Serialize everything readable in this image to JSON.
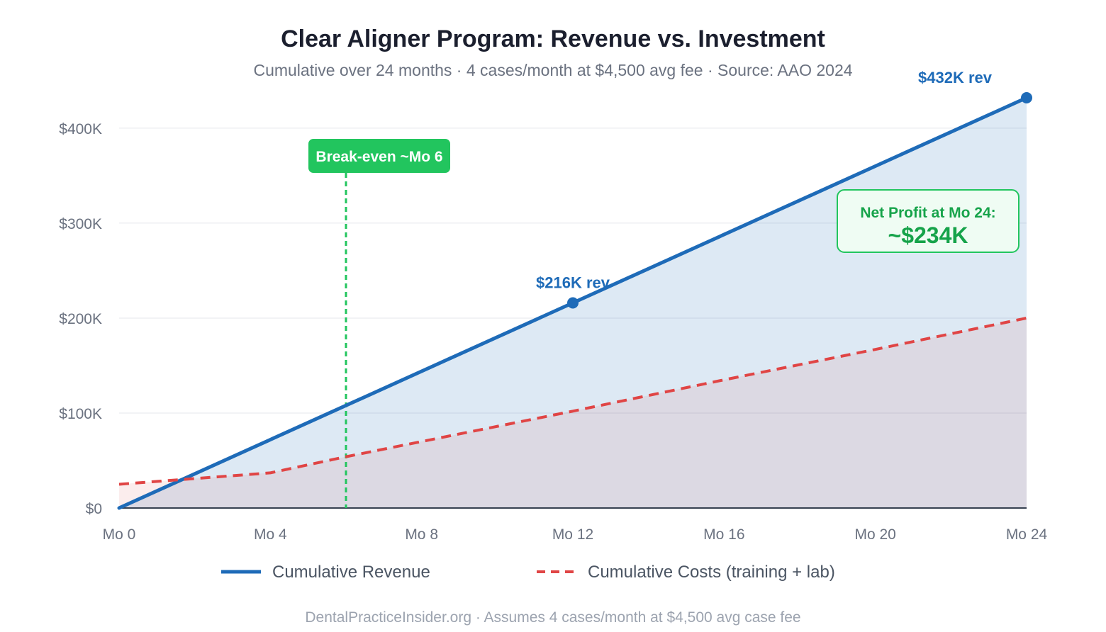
{
  "chart_data": {
    "type": "line",
    "title": "Clear Aligner Program: Revenue vs. Investment",
    "subtitle": "Cumulative over 24 months · 4 cases/month at $4,500 avg fee · Source: AAO 2024",
    "footer": "DentalPracticeInsider.org · Assumes 4 cases/month at $4,500 avg case fee",
    "x_ticks": [
      {
        "value": 0,
        "label": "Mo 0"
      },
      {
        "value": 4,
        "label": "Mo 4"
      },
      {
        "value": 8,
        "label": "Mo 8"
      },
      {
        "value": 12,
        "label": "Mo 12"
      },
      {
        "value": 16,
        "label": "Mo 16"
      },
      {
        "value": 20,
        "label": "Mo 20"
      },
      {
        "value": 24,
        "label": "Mo 24"
      }
    ],
    "y_ticks": [
      {
        "value": 0,
        "label": "$0"
      },
      {
        "value": 100000,
        "label": "$100K"
      },
      {
        "value": 200000,
        "label": "$200K"
      },
      {
        "value": 300000,
        "label": "$300K"
      },
      {
        "value": 400000,
        "label": "$400K"
      }
    ],
    "xlim": [
      0,
      24
    ],
    "ylim": [
      0,
      432000
    ],
    "grid": true,
    "legend_position": "bottom",
    "series": [
      {
        "name": "Cumulative Revenue",
        "color": "#1e6bb8",
        "style": "solid",
        "x": [
          0,
          24
        ],
        "values": [
          0,
          432000
        ]
      },
      {
        "name": "Cumulative Costs (training + lab)",
        "color": "#e04545",
        "style": "dashed",
        "x": [
          0,
          4,
          6,
          8,
          12,
          16,
          20,
          24
        ],
        "values": [
          25000,
          37000,
          54000,
          70000,
          102000,
          135000,
          167000,
          200000
        ]
      }
    ],
    "annotations": {
      "break_even": {
        "x": 6,
        "label": "Break-even ~Mo 6",
        "color": "#22c55e"
      },
      "points": [
        {
          "x": 12,
          "y": 216000,
          "label": "$216K rev"
        },
        {
          "x": 24,
          "y": 432000,
          "label": "$432K rev"
        }
      ],
      "net_profit": {
        "label": "Net Profit at Mo 24:",
        "value": "~$234K",
        "color": "#16a34a"
      }
    }
  }
}
